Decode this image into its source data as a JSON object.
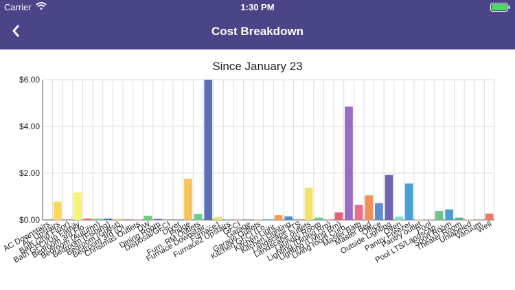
{
  "status_bar": {
    "carrier": "Carrier",
    "time": "1:30 PM"
  },
  "nav": {
    "title": "Cost Breakdown",
    "back_icon": "chevron-left-icon"
  },
  "colors": {
    "nav_bg": "#4a4587",
    "battery": "#4cd964"
  },
  "chart_data": {
    "type": "bar",
    "title": "Since January 23",
    "xlabel": "",
    "ylabel": "",
    "ylim": [
      0,
      6
    ],
    "yticks": [
      "$0.00",
      "$2.00",
      "$4.00",
      "$6.00"
    ],
    "grid": true,
    "categories": [
      "AC Downstairs",
      "AC Upstairs",
      "Bath (2nd Floor)",
      "Bath GFCI/Up Family",
      "Bedroom 3rd Flo...",
      "Bedroom (Autumn)",
      "Bedroom (Fishing)",
      "Bedroom (Guest)",
      "Bedroom 3rd (Ol...",
      "Christmas Outlets",
      "DW",
      "Dining Room",
      "Disposal/GFCI",
      "Dryer",
      "Fridge",
      "Furn. RM Outlets",
      "Furnace Downstair...",
      "Furnace1",
      "Furnace2 Upstairs",
      "GFCI",
      "Garage",
      "Garage Outlets",
      "Kitchen GFCI (Lo...",
      "Kitchen Light...",
      "Kitchen Lighting",
      "Landscape LTS",
      "Landscape outlets",
      "Laundry Room",
      "Lighting (Dining Rm)",
      "Lighting (Living Rm)",
      "Living room Curb...",
      "Master Bath",
      "Master Bed",
      "Office",
      "Outside Lighting",
      "Oven",
      "Pantry Freezer",
      "Pantry outlet",
      "Pool",
      "Pool LTS/Landscap...",
      "Sport Room",
      "Theater Room",
      "Unlabeled",
      "Vacuum",
      "Well"
    ],
    "values": [
      0.0,
      0.78,
      0.0,
      1.17,
      0.06,
      0.06,
      0.05,
      0.05,
      0.0,
      0.02,
      0.18,
      0.05,
      0.0,
      0.0,
      1.76,
      0.26,
      6.0,
      0.12,
      0.03,
      0.02,
      0.0,
      0.02,
      0.03,
      0.2,
      0.15,
      0.0,
      1.38,
      0.1,
      0.02,
      0.32,
      4.85,
      0.65,
      1.05,
      0.72,
      1.92,
      0.14,
      1.56,
      0.02,
      0.02,
      0.38,
      0.45,
      0.1,
      0.02,
      0.02,
      0.27
    ],
    "bar_colors": [
      "#f7c55c",
      "#f9d95d",
      "#f3ec6b",
      "#f6f27a",
      "#f06a6a",
      "#7fce8f",
      "#4a6fb5",
      "#e9d070",
      "#6a7bd0",
      "#f08a8a",
      "#6ccf7f",
      "#6d78c9",
      "#e77070",
      "#b090d6",
      "#f7c25b",
      "#6ed08c",
      "#5a6fb4",
      "#eee270",
      "#7fd9a5",
      "#ef7f8f",
      "#cccccc",
      "#f7c060",
      "#6cc0d8",
      "#f59c52",
      "#4d8fc6",
      "#b4a1d8",
      "#f3e26a",
      "#72c98a",
      "#f27792",
      "#e8606f",
      "#9a6bc2",
      "#e9708a",
      "#f0915a",
      "#5f8ed0",
      "#6f64b0",
      "#7ee0d0",
      "#4a9fd6",
      "#f2d06a",
      "#ef8a8a",
      "#6fc38a",
      "#4a9ed2",
      "#5cb88a",
      "#f0d672",
      "#f07a8a",
      "#f07565"
    ]
  }
}
